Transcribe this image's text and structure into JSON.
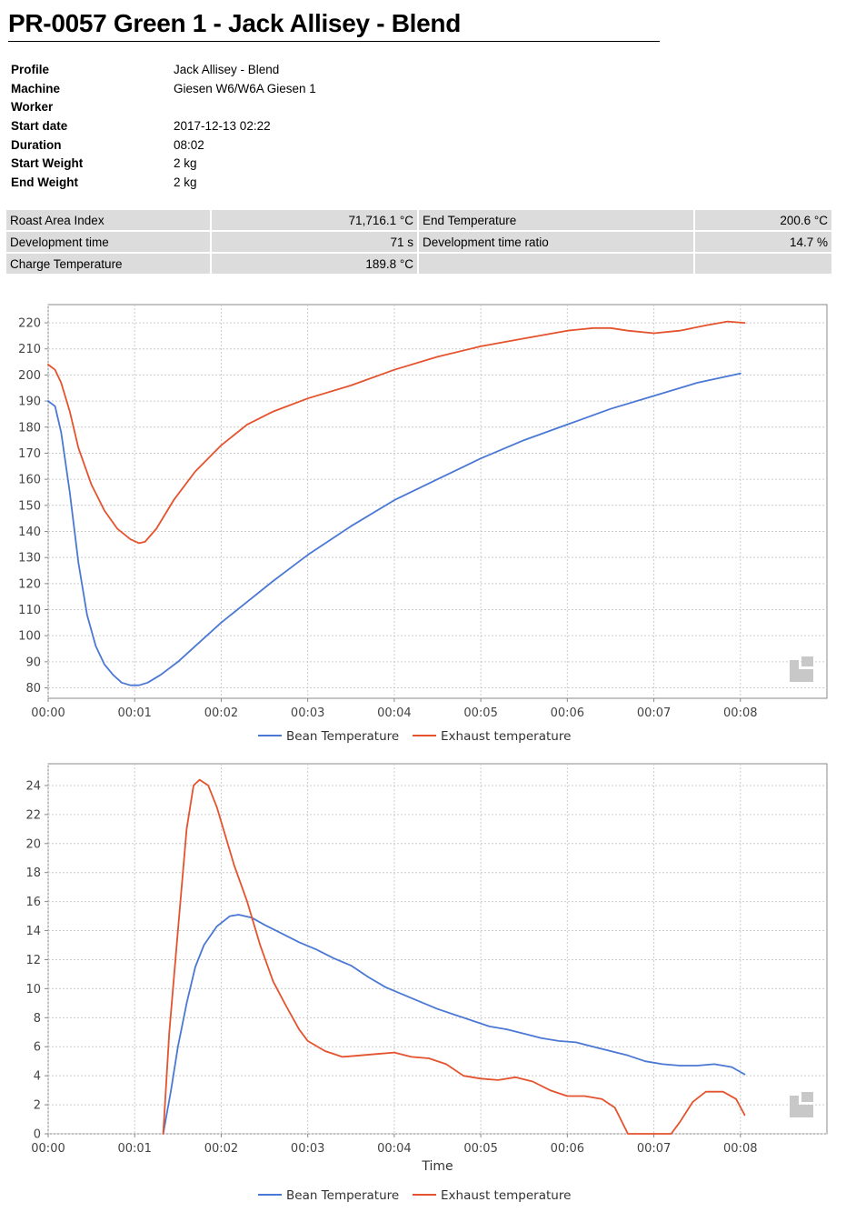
{
  "header": {
    "title": "PR-0057 Green 1 - Jack Allisey - Blend"
  },
  "info": [
    {
      "label": "Profile",
      "value": "Jack Allisey - Blend"
    },
    {
      "label": "Machine",
      "value": "Giesen W6/W6A Giesen 1"
    },
    {
      "label": "Worker",
      "value": ""
    },
    {
      "label": "Start date",
      "value": "2017-12-13 02:22"
    },
    {
      "label": "Duration",
      "value": "08:02"
    },
    {
      "label": "Start Weight",
      "value": "2 kg"
    },
    {
      "label": "End Weight",
      "value": "2 kg"
    }
  ],
  "stats": [
    {
      "label": "Roast Area Index",
      "value": "71,716.1 °C"
    },
    {
      "label": "End Temperature",
      "value": "200.6 °C"
    },
    {
      "label": "Development time",
      "value": "71 s"
    },
    {
      "label": "Development time ratio",
      "value": "14.7 %"
    },
    {
      "label": "Charge Temperature",
      "value": "189.8 °C"
    },
    {
      "label": "",
      "value": ""
    }
  ],
  "colors": {
    "bean": "#4a78d4",
    "exhaust": "#e4532e",
    "grid": "#cccccc",
    "plot_border": "#888888"
  },
  "chart_data": [
    {
      "type": "line",
      "xlabel": "",
      "ylabel": "",
      "x_unit": "minutes",
      "xlim": [
        0,
        9.0
      ],
      "ylim": [
        76,
        227
      ],
      "x_ticks": [
        0,
        1,
        2,
        3,
        4,
        5,
        6,
        7,
        8
      ],
      "x_tick_labels": [
        "00:00",
        "00:01",
        "00:02",
        "00:03",
        "00:04",
        "00:05",
        "00:06",
        "00:07",
        "00:08"
      ],
      "y_ticks": [
        80,
        90,
        100,
        110,
        120,
        130,
        140,
        150,
        160,
        170,
        180,
        190,
        200,
        210,
        220
      ],
      "grid": true,
      "legend": "bottom-center",
      "series": [
        {
          "name": "Bean Temperature",
          "color": "#4a78d4",
          "points": [
            [
              0,
              190
            ],
            [
              0.08,
              188
            ],
            [
              0.15,
              178
            ],
            [
              0.25,
              155
            ],
            [
              0.35,
              128
            ],
            [
              0.45,
              108
            ],
            [
              0.55,
              96
            ],
            [
              0.65,
              89
            ],
            [
              0.75,
              85
            ],
            [
              0.85,
              82
            ],
            [
              0.95,
              81
            ],
            [
              1.05,
              81
            ],
            [
              1.15,
              82
            ],
            [
              1.3,
              85
            ],
            [
              1.5,
              90
            ],
            [
              1.7,
              96
            ],
            [
              2.0,
              105
            ],
            [
              2.3,
              113
            ],
            [
              2.6,
              121
            ],
            [
              3.0,
              131
            ],
            [
              3.5,
              142
            ],
            [
              4.0,
              152
            ],
            [
              4.5,
              160
            ],
            [
              5.0,
              168
            ],
            [
              5.5,
              175
            ],
            [
              6.0,
              181
            ],
            [
              6.5,
              187
            ],
            [
              7.0,
              192
            ],
            [
              7.5,
              197
            ],
            [
              8.0,
              200.6
            ]
          ]
        },
        {
          "name": "Exhaust temperature",
          "color": "#e4532e",
          "points": [
            [
              0,
              204
            ],
            [
              0.08,
              202
            ],
            [
              0.15,
              197
            ],
            [
              0.25,
              186
            ],
            [
              0.35,
              172
            ],
            [
              0.5,
              158
            ],
            [
              0.65,
              148
            ],
            [
              0.8,
              141
            ],
            [
              0.95,
              137
            ],
            [
              1.05,
              135.5
            ],
            [
              1.12,
              136
            ],
            [
              1.25,
              141
            ],
            [
              1.45,
              152
            ],
            [
              1.7,
              163
            ],
            [
              2.0,
              173
            ],
            [
              2.3,
              181
            ],
            [
              2.6,
              186
            ],
            [
              3.0,
              191
            ],
            [
              3.5,
              196
            ],
            [
              4.0,
              202
            ],
            [
              4.5,
              207
            ],
            [
              5.0,
              211
            ],
            [
              5.5,
              214
            ],
            [
              6.0,
              217
            ],
            [
              6.3,
              218
            ],
            [
              6.5,
              218
            ],
            [
              6.7,
              217
            ],
            [
              7.0,
              216
            ],
            [
              7.3,
              217
            ],
            [
              7.6,
              219
            ],
            [
              7.85,
              220.5
            ],
            [
              8.05,
              220
            ]
          ]
        }
      ]
    },
    {
      "type": "line",
      "xlabel": "Time",
      "ylabel": "",
      "x_unit": "minutes",
      "xlim": [
        0,
        9.0
      ],
      "ylim": [
        0,
        25.5
      ],
      "x_ticks": [
        0,
        1,
        2,
        3,
        4,
        5,
        6,
        7,
        8
      ],
      "x_tick_labels": [
        "00:00",
        "00:01",
        "00:02",
        "00:03",
        "00:04",
        "00:05",
        "00:06",
        "00:07",
        "00:08"
      ],
      "y_ticks": [
        0,
        2,
        4,
        6,
        8,
        10,
        12,
        14,
        16,
        18,
        20,
        22,
        24
      ],
      "grid": true,
      "legend": "bottom-center",
      "series": [
        {
          "name": "Bean Temperature",
          "color": "#4a78d4",
          "points": [
            [
              1.33,
              0
            ],
            [
              1.42,
              3
            ],
            [
              1.5,
              6
            ],
            [
              1.6,
              9
            ],
            [
              1.7,
              11.5
            ],
            [
              1.8,
              13
            ],
            [
              1.95,
              14.3
            ],
            [
              2.1,
              15
            ],
            [
              2.2,
              15.1
            ],
            [
              2.35,
              14.9
            ],
            [
              2.5,
              14.4
            ],
            [
              2.7,
              13.8
            ],
            [
              2.9,
              13.2
            ],
            [
              3.1,
              12.7
            ],
            [
              3.3,
              12.1
            ],
            [
              3.5,
              11.6
            ],
            [
              3.7,
              10.8
            ],
            [
              3.9,
              10.1
            ],
            [
              4.1,
              9.6
            ],
            [
              4.3,
              9.1
            ],
            [
              4.5,
              8.6
            ],
            [
              4.7,
              8.2
            ],
            [
              4.9,
              7.8
            ],
            [
              5.1,
              7.4
            ],
            [
              5.3,
              7.2
            ],
            [
              5.5,
              6.9
            ],
            [
              5.7,
              6.6
            ],
            [
              5.9,
              6.4
            ],
            [
              6.1,
              6.3
            ],
            [
              6.3,
              6.0
            ],
            [
              6.5,
              5.7
            ],
            [
              6.7,
              5.4
            ],
            [
              6.9,
              5.0
            ],
            [
              7.1,
              4.8
            ],
            [
              7.3,
              4.7
            ],
            [
              7.5,
              4.7
            ],
            [
              7.7,
              4.8
            ],
            [
              7.9,
              4.6
            ],
            [
              8.05,
              4.1
            ]
          ]
        },
        {
          "name": "Exhaust temperature",
          "color": "#e4532e",
          "points": [
            [
              1.33,
              0
            ],
            [
              1.4,
              7
            ],
            [
              1.5,
              14
            ],
            [
              1.6,
              21
            ],
            [
              1.68,
              24
            ],
            [
              1.75,
              24.4
            ],
            [
              1.85,
              24
            ],
            [
              1.95,
              22.5
            ],
            [
              2.05,
              20.5
            ],
            [
              2.15,
              18.5
            ],
            [
              2.3,
              16
            ],
            [
              2.45,
              13
            ],
            [
              2.6,
              10.5
            ],
            [
              2.75,
              8.8
            ],
            [
              2.9,
              7.2
            ],
            [
              3.0,
              6.4
            ],
            [
              3.2,
              5.7
            ],
            [
              3.4,
              5.3
            ],
            [
              3.6,
              5.4
            ],
            [
              3.8,
              5.5
            ],
            [
              4.0,
              5.6
            ],
            [
              4.2,
              5.3
            ],
            [
              4.4,
              5.2
            ],
            [
              4.6,
              4.8
            ],
            [
              4.8,
              4.0
            ],
            [
              5.0,
              3.8
            ],
            [
              5.2,
              3.7
            ],
            [
              5.4,
              3.9
            ],
            [
              5.6,
              3.6
            ],
            [
              5.8,
              3.0
            ],
            [
              6.0,
              2.6
            ],
            [
              6.2,
              2.6
            ],
            [
              6.4,
              2.4
            ],
            [
              6.55,
              1.8
            ],
            [
              6.7,
              0
            ],
            [
              6.73,
              0
            ],
            [
              7.2,
              0
            ],
            [
              7.3,
              0.8
            ],
            [
              7.45,
              2.2
            ],
            [
              7.6,
              2.9
            ],
            [
              7.8,
              2.9
            ],
            [
              7.95,
              2.4
            ],
            [
              8.05,
              1.3
            ]
          ]
        }
      ]
    }
  ]
}
